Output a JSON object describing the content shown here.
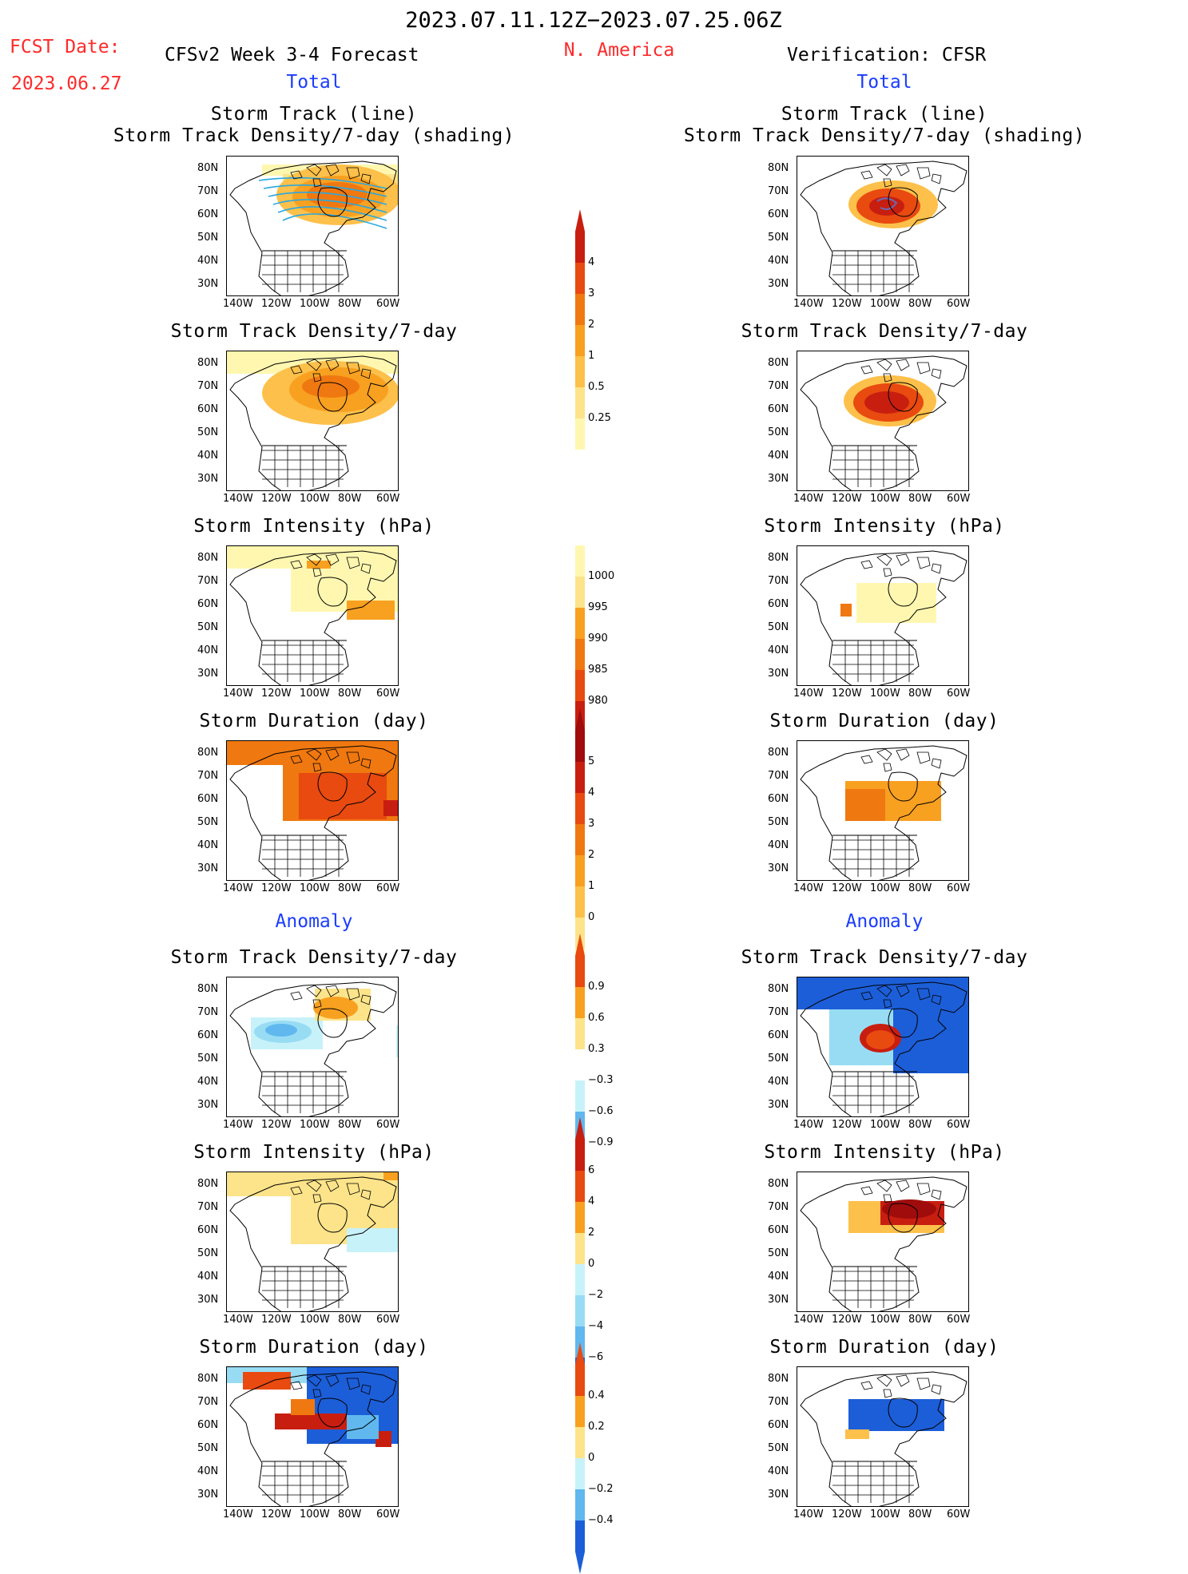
{
  "header": {
    "period": "2023.07.11.12Z−2023.07.25.06Z",
    "fcst_label": "FCST Date:",
    "fcst_date": "2023.06.27",
    "left_title": "CFSv2 Week 3-4 Forecast",
    "region": "N. America",
    "right_title": "Verification: CFSR",
    "total_label": "Total",
    "anomaly_label": "Anomaly"
  },
  "titles": {
    "track_line": "Storm Track (line)",
    "track_shading": "Storm Track Density/7-day (shading)",
    "density": "Storm Track Density/7-day",
    "intensity": "Storm Intensity (hPa)",
    "duration": "Storm Duration (day)"
  },
  "axes": {
    "lat_labels": [
      "80N",
      "70N",
      "60N",
      "50N",
      "40N",
      "30N"
    ],
    "lon_labels": [
      "140W",
      "120W",
      "100W",
      "80W",
      "60W"
    ]
  },
  "colorbars": {
    "density": [
      "4",
      "3",
      "2",
      "1",
      "0.5",
      "0.25"
    ],
    "intensity": [
      "1000",
      "995",
      "990",
      "985",
      "980"
    ],
    "duration": [
      "5",
      "4",
      "3",
      "2",
      "1",
      "0"
    ],
    "density_anom": [
      "0.9",
      "0.6",
      "0.3",
      "−0.3",
      "−0.6",
      "−0.9"
    ],
    "intensity_anom": [
      "6",
      "4",
      "2",
      "0",
      "−2",
      "−4",
      "−6"
    ],
    "duration_anom": [
      "0.4",
      "0.2",
      "0",
      "−0.2",
      "−0.4"
    ]
  },
  "colors": {
    "header_red": "#ff2a2a",
    "header_blue": "#1a3cff",
    "warm": [
      "#fff7b0",
      "#fde48a",
      "#fdc04a",
      "#f8a020",
      "#f07810",
      "#e84a10",
      "#c81e10",
      "#a00c0c"
    ],
    "cool": [
      "#c8f2fa",
      "#98dcf4",
      "#60b8ee",
      "#3a8ee8",
      "#1c5ed8"
    ]
  }
}
